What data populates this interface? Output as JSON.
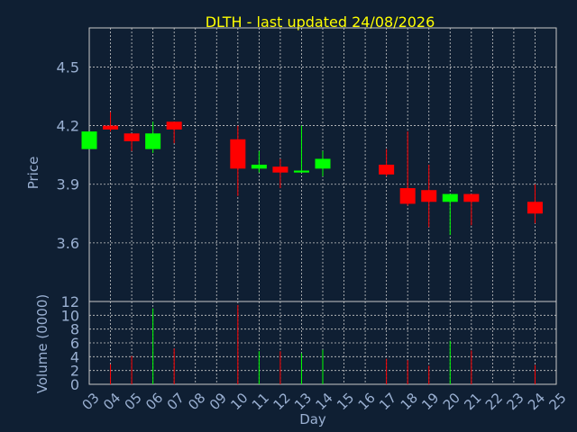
{
  "title": "DLTH - last updated 24/08/2026",
  "colors": {
    "background": "#0f1f33",
    "axis_text": "#9ab0d2",
    "title": "#ffff00",
    "up": "#00ff00",
    "down": "#ff0000",
    "grid": "#c8c8c8"
  },
  "chart_data": [
    {
      "type": "candlestick",
      "ylabel": "Price",
      "ylim": [
        3.3,
        4.7
      ],
      "yticks": [
        3.6,
        3.9,
        4.2,
        4.5
      ],
      "ytick_labels": [
        "3.6",
        "3.9",
        "4.2",
        "4.5"
      ],
      "x": [
        "03",
        "04",
        "05",
        "06",
        "07",
        "10",
        "11",
        "12",
        "13",
        "14",
        "17",
        "18",
        "19",
        "20",
        "21",
        "24"
      ],
      "series": [
        {
          "day": "03",
          "open": 4.08,
          "high": 4.17,
          "low": 4.08,
          "close": 4.17
        },
        {
          "day": "04",
          "open": 4.2,
          "high": 4.27,
          "low": 4.17,
          "close": 4.18
        },
        {
          "day": "05",
          "open": 4.16,
          "high": 4.16,
          "low": 4.07,
          "close": 4.12
        },
        {
          "day": "06",
          "open": 4.08,
          "high": 4.22,
          "low": 4.06,
          "close": 4.16
        },
        {
          "day": "07",
          "open": 4.22,
          "high": 4.22,
          "low": 4.11,
          "close": 4.18
        },
        {
          "day": "10",
          "open": 4.13,
          "high": 4.2,
          "low": 3.84,
          "close": 3.98
        },
        {
          "day": "11",
          "open": 3.98,
          "high": 4.07,
          "low": 3.96,
          "close": 4.0
        },
        {
          "day": "12",
          "open": 3.99,
          "high": 4.03,
          "low": 3.88,
          "close": 3.96
        },
        {
          "day": "13",
          "open": 3.96,
          "high": 4.2,
          "low": 3.96,
          "close": 3.97
        },
        {
          "day": "14",
          "open": 3.98,
          "high": 4.07,
          "low": 3.94,
          "close": 4.03
        },
        {
          "day": "17",
          "open": 4.0,
          "high": 4.08,
          "low": 3.94,
          "close": 3.95
        },
        {
          "day": "18",
          "open": 3.88,
          "high": 4.17,
          "low": 3.79,
          "close": 3.8
        },
        {
          "day": "19",
          "open": 3.87,
          "high": 4.0,
          "low": 3.68,
          "close": 3.81
        },
        {
          "day": "20",
          "open": 3.81,
          "high": 3.85,
          "low": 3.64,
          "close": 3.85
        },
        {
          "day": "21",
          "open": 3.85,
          "high": 3.85,
          "low": 3.69,
          "close": 3.81
        },
        {
          "day": "24",
          "open": 3.81,
          "high": 3.9,
          "low": 3.7,
          "close": 3.75
        }
      ]
    },
    {
      "type": "bar",
      "ylabel": "Volume (0000)",
      "xlabel": "Day",
      "ylim": [
        0,
        12
      ],
      "yticks": [
        0,
        2,
        4,
        6,
        8,
        10,
        12
      ],
      "ytick_labels": [
        "0",
        "2",
        "4",
        "6",
        "8",
        "10",
        "12"
      ],
      "categories": [
        "03",
        "04",
        "05",
        "06",
        "07",
        "08",
        "09",
        "10",
        "11",
        "12",
        "13",
        "14",
        "15",
        "16",
        "17",
        "18",
        "19",
        "20",
        "21",
        "22",
        "23",
        "24",
        "25"
      ],
      "xtick_labels": [
        "03",
        "04",
        "05",
        "06",
        "07",
        "08",
        "09",
        "10",
        "11",
        "12",
        "13",
        "14",
        "15",
        "16",
        "17",
        "18",
        "19",
        "20",
        "21",
        "22",
        "23",
        "24",
        "25"
      ],
      "values": [
        {
          "day": "04",
          "volume": 2.9,
          "direction": "down"
        },
        {
          "day": "05",
          "volume": 4.1,
          "direction": "down"
        },
        {
          "day": "06",
          "volume": 11.0,
          "direction": "up"
        },
        {
          "day": "07",
          "volume": 5.2,
          "direction": "down"
        },
        {
          "day": "10",
          "volume": 11.5,
          "direction": "down"
        },
        {
          "day": "11",
          "volume": 4.8,
          "direction": "up"
        },
        {
          "day": "12",
          "volume": 4.8,
          "direction": "down"
        },
        {
          "day": "13",
          "volume": 4.5,
          "direction": "up"
        },
        {
          "day": "14",
          "volume": 5.0,
          "direction": "up"
        },
        {
          "day": "17",
          "volume": 3.7,
          "direction": "down"
        },
        {
          "day": "18",
          "volume": 3.5,
          "direction": "down"
        },
        {
          "day": "19",
          "volume": 2.7,
          "direction": "down"
        },
        {
          "day": "20",
          "volume": 6.3,
          "direction": "up"
        },
        {
          "day": "21",
          "volume": 4.9,
          "direction": "down"
        },
        {
          "day": "24",
          "volume": 2.8,
          "direction": "down"
        }
      ]
    }
  ]
}
